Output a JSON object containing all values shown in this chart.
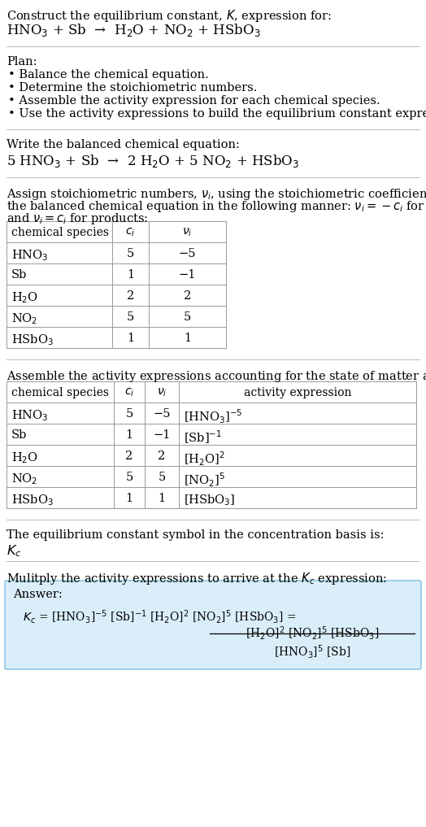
{
  "title_line1": "Construct the equilibrium constant, $K$, expression for:",
  "title_line2": "HNO$_3$ + Sb  →  H$_2$O + NO$_2$ + HSbO$_3$",
  "plan_header": "Plan:",
  "plan_items": [
    "• Balance the chemical equation.",
    "• Determine the stoichiometric numbers.",
    "• Assemble the activity expression for each chemical species.",
    "• Use the activity expressions to build the equilibrium constant expression."
  ],
  "balanced_header": "Write the balanced chemical equation:",
  "balanced_eq": "5 HNO$_3$ + Sb  →  2 H$_2$O + 5 NO$_2$ + HSbO$_3$",
  "stoich_header_line1": "Assign stoichiometric numbers, $\\nu_i$, using the stoichiometric coefficients, $c_i$, from",
  "stoich_header_line2": "the balanced chemical equation in the following manner: $\\nu_i = -c_i$ for reactants",
  "stoich_header_line3": "and $\\nu_i = c_i$ for products:",
  "table1_headers": [
    "chemical species",
    "$c_i$",
    "$\\nu_i$"
  ],
  "table1_rows": [
    [
      "HNO$_3$",
      "5",
      "−5"
    ],
    [
      "Sb",
      "1",
      "−1"
    ],
    [
      "H$_2$O",
      "2",
      "2"
    ],
    [
      "NO$_2$",
      "5",
      "5"
    ],
    [
      "HSbO$_3$",
      "1",
      "1"
    ]
  ],
  "activity_header": "Assemble the activity expressions accounting for the state of matter and $\\nu_i$:",
  "table2_headers": [
    "chemical species",
    "$c_i$",
    "$\\nu_i$",
    "activity expression"
  ],
  "table2_rows": [
    [
      "HNO$_3$",
      "5",
      "−5",
      "[HNO$_3$]$^{-5}$"
    ],
    [
      "Sb",
      "1",
      "−1",
      "[Sb]$^{-1}$"
    ],
    [
      "H$_2$O",
      "2",
      "2",
      "[H$_2$O]$^2$"
    ],
    [
      "NO$_2$",
      "5",
      "5",
      "[NO$_2$]$^5$"
    ],
    [
      "HSbO$_3$",
      "1",
      "1",
      "[HSbO$_3$]"
    ]
  ],
  "kc_text_line1": "The equilibrium constant symbol in the concentration basis is:",
  "kc_symbol": "$K_c$",
  "multiply_header": "Mulitply the activity expressions to arrive at the $K_c$ expression:",
  "answer_label": "Answer:",
  "answer_lhs": "$K_c$ = [HNO$_3$]$^{-5}$ [Sb]$^{-1}$ [H$_2$O]$^2$ [NO$_2$]$^5$ [HSbO$_3$] =",
  "answer_box_color": "#daeef9",
  "answer_border_color": "#7fbfdf",
  "bg_color": "#ffffff",
  "text_color": "#000000",
  "table_line_color": "#999999",
  "separator_color": "#bbbbbb",
  "font_family": "DejaVu Serif",
  "font_size": 10.5
}
